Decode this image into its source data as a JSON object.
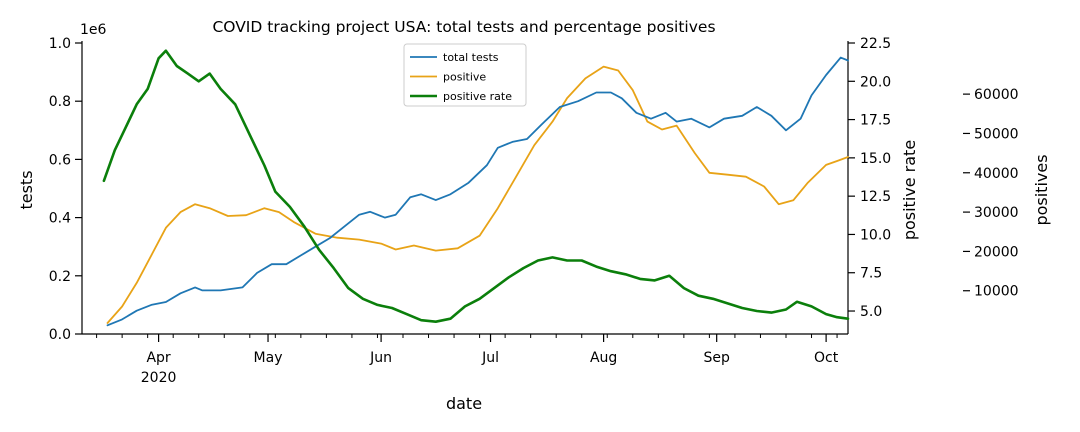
{
  "chart_data": {
    "type": "line",
    "title": "COVID tracking project USA: total tests and percentage positives",
    "xlabel": "date",
    "x_ticks_major": [
      "Apr\n2020",
      "May",
      "Jun",
      "Jul",
      "Aug",
      "Sep",
      "Oct"
    ],
    "x_range": [
      "2020-03-11",
      "2020-10-07"
    ],
    "axes": {
      "left": {
        "label": "tests",
        "multiplier": "1e6",
        "range": [
          0,
          1.0
        ],
        "ticks": [
          "0.0",
          "0.2",
          "0.4",
          "0.6",
          "0.8",
          "1.0"
        ]
      },
      "right_inner": {
        "label": "positive rate",
        "range": [
          3.5,
          22.5
        ],
        "ticks": [
          "5.0",
          "7.5",
          "10.0",
          "12.5",
          "15.0",
          "17.5",
          "20.0",
          "22.5"
        ]
      },
      "right_outer": {
        "label": "positives",
        "range": [
          -1000,
          73000
        ],
        "ticks": [
          "10000",
          "20000",
          "30000",
          "40000",
          "50000",
          "60000"
        ]
      }
    },
    "legend_position": "top-center",
    "series": [
      {
        "name": "total tests",
        "axis": "left",
        "color": "#1f77b4",
        "points": [
          [
            "2020-03-18",
            0.03
          ],
          [
            "2020-03-22",
            0.05
          ],
          [
            "2020-03-26",
            0.08
          ],
          [
            "2020-03-30",
            0.1
          ],
          [
            "2020-04-03",
            0.11
          ],
          [
            "2020-04-07",
            0.14
          ],
          [
            "2020-04-11",
            0.16
          ],
          [
            "2020-04-13",
            0.15
          ],
          [
            "2020-04-18",
            0.15
          ],
          [
            "2020-04-24",
            0.16
          ],
          [
            "2020-04-28",
            0.21
          ],
          [
            "2020-05-02",
            0.24
          ],
          [
            "2020-05-06",
            0.24
          ],
          [
            "2020-05-10",
            0.27
          ],
          [
            "2020-05-14",
            0.3
          ],
          [
            "2020-05-18",
            0.33
          ],
          [
            "2020-05-22",
            0.37
          ],
          [
            "2020-05-26",
            0.41
          ],
          [
            "2020-05-29",
            0.42
          ],
          [
            "2020-06-02",
            0.4
          ],
          [
            "2020-06-05",
            0.41
          ],
          [
            "2020-06-09",
            0.47
          ],
          [
            "2020-06-12",
            0.48
          ],
          [
            "2020-06-16",
            0.46
          ],
          [
            "2020-06-20",
            0.48
          ],
          [
            "2020-06-25",
            0.52
          ],
          [
            "2020-06-30",
            0.58
          ],
          [
            "2020-07-03",
            0.64
          ],
          [
            "2020-07-07",
            0.66
          ],
          [
            "2020-07-11",
            0.67
          ],
          [
            "2020-07-15",
            0.72
          ],
          [
            "2020-07-20",
            0.78
          ],
          [
            "2020-07-25",
            0.8
          ],
          [
            "2020-07-30",
            0.83
          ],
          [
            "2020-08-03",
            0.83
          ],
          [
            "2020-08-06",
            0.81
          ],
          [
            "2020-08-10",
            0.76
          ],
          [
            "2020-08-14",
            0.74
          ],
          [
            "2020-08-18",
            0.76
          ],
          [
            "2020-08-21",
            0.73
          ],
          [
            "2020-08-25",
            0.74
          ],
          [
            "2020-08-30",
            0.71
          ],
          [
            "2020-09-03",
            0.74
          ],
          [
            "2020-09-08",
            0.75
          ],
          [
            "2020-09-12",
            0.78
          ],
          [
            "2020-09-16",
            0.75
          ],
          [
            "2020-09-20",
            0.7
          ],
          [
            "2020-09-24",
            0.74
          ],
          [
            "2020-09-27",
            0.82
          ],
          [
            "2020-10-01",
            0.89
          ],
          [
            "2020-10-05",
            0.95
          ],
          [
            "2020-10-07",
            0.94
          ]
        ]
      },
      {
        "name": "positive",
        "axis": "right_outer",
        "color": "#e8a317",
        "points": [
          [
            "2020-03-18",
            1800
          ],
          [
            "2020-03-22",
            6000
          ],
          [
            "2020-03-26",
            12000
          ],
          [
            "2020-03-30",
            19000
          ],
          [
            "2020-04-03",
            26000
          ],
          [
            "2020-04-07",
            30000
          ],
          [
            "2020-04-11",
            32000
          ],
          [
            "2020-04-15",
            31000
          ],
          [
            "2020-04-20",
            29000
          ],
          [
            "2020-04-25",
            29200
          ],
          [
            "2020-04-30",
            31000
          ],
          [
            "2020-05-04",
            30000
          ],
          [
            "2020-05-08",
            27500
          ],
          [
            "2020-05-14",
            24500
          ],
          [
            "2020-05-20",
            23500
          ],
          [
            "2020-05-26",
            23000
          ],
          [
            "2020-06-01",
            22000
          ],
          [
            "2020-06-05",
            20500
          ],
          [
            "2020-06-10",
            21500
          ],
          [
            "2020-06-16",
            20200
          ],
          [
            "2020-06-22",
            20800
          ],
          [
            "2020-06-28",
            24000
          ],
          [
            "2020-07-03",
            31000
          ],
          [
            "2020-07-08",
            39000
          ],
          [
            "2020-07-13",
            47000
          ],
          [
            "2020-07-18",
            53000
          ],
          [
            "2020-07-22",
            59000
          ],
          [
            "2020-07-27",
            64000
          ],
          [
            "2020-08-01",
            67000
          ],
          [
            "2020-08-05",
            66000
          ],
          [
            "2020-08-09",
            61000
          ],
          [
            "2020-08-13",
            53000
          ],
          [
            "2020-08-17",
            51000
          ],
          [
            "2020-08-21",
            52000
          ],
          [
            "2020-08-26",
            45000
          ],
          [
            "2020-08-30",
            40000
          ],
          [
            "2020-09-04",
            39500
          ],
          [
            "2020-09-09",
            39000
          ],
          [
            "2020-09-14",
            36500
          ],
          [
            "2020-09-18",
            32000
          ],
          [
            "2020-09-22",
            33000
          ],
          [
            "2020-09-26",
            37500
          ],
          [
            "2020-10-01",
            42000
          ],
          [
            "2020-10-04",
            43000
          ],
          [
            "2020-10-07",
            44000
          ]
        ]
      },
      {
        "name": "positive rate",
        "axis": "right_inner",
        "color": "#0b7f0b",
        "points": [
          [
            "2020-03-17",
            13.5
          ],
          [
            "2020-03-20",
            15.5
          ],
          [
            "2020-03-23",
            17.0
          ],
          [
            "2020-03-26",
            18.5
          ],
          [
            "2020-03-29",
            19.5
          ],
          [
            "2020-04-01",
            21.5
          ],
          [
            "2020-04-03",
            22.0
          ],
          [
            "2020-04-06",
            21.0
          ],
          [
            "2020-04-09",
            20.5
          ],
          [
            "2020-04-12",
            20.0
          ],
          [
            "2020-04-15",
            20.5
          ],
          [
            "2020-04-18",
            19.5
          ],
          [
            "2020-04-22",
            18.5
          ],
          [
            "2020-04-26",
            16.5
          ],
          [
            "2020-04-30",
            14.5
          ],
          [
            "2020-05-03",
            12.8
          ],
          [
            "2020-05-07",
            11.8
          ],
          [
            "2020-05-11",
            10.5
          ],
          [
            "2020-05-15",
            9.0
          ],
          [
            "2020-05-19",
            7.8
          ],
          [
            "2020-05-23",
            6.5
          ],
          [
            "2020-05-27",
            5.8
          ],
          [
            "2020-05-31",
            5.4
          ],
          [
            "2020-06-04",
            5.2
          ],
          [
            "2020-06-08",
            4.8
          ],
          [
            "2020-06-12",
            4.4
          ],
          [
            "2020-06-16",
            4.3
          ],
          [
            "2020-06-20",
            4.5
          ],
          [
            "2020-06-24",
            5.3
          ],
          [
            "2020-06-28",
            5.8
          ],
          [
            "2020-07-02",
            6.5
          ],
          [
            "2020-07-06",
            7.2
          ],
          [
            "2020-07-10",
            7.8
          ],
          [
            "2020-07-14",
            8.3
          ],
          [
            "2020-07-18",
            8.5
          ],
          [
            "2020-07-22",
            8.3
          ],
          [
            "2020-07-26",
            8.3
          ],
          [
            "2020-07-30",
            7.9
          ],
          [
            "2020-08-03",
            7.6
          ],
          [
            "2020-08-07",
            7.4
          ],
          [
            "2020-08-11",
            7.1
          ],
          [
            "2020-08-15",
            7.0
          ],
          [
            "2020-08-19",
            7.3
          ],
          [
            "2020-08-23",
            6.5
          ],
          [
            "2020-08-27",
            6.0
          ],
          [
            "2020-08-31",
            5.8
          ],
          [
            "2020-09-04",
            5.5
          ],
          [
            "2020-09-08",
            5.2
          ],
          [
            "2020-09-12",
            5.0
          ],
          [
            "2020-09-16",
            4.9
          ],
          [
            "2020-09-20",
            5.1
          ],
          [
            "2020-09-23",
            5.6
          ],
          [
            "2020-09-27",
            5.3
          ],
          [
            "2020-10-01",
            4.8
          ],
          [
            "2020-10-04",
            4.6
          ],
          [
            "2020-10-07",
            4.5
          ]
        ]
      }
    ]
  }
}
